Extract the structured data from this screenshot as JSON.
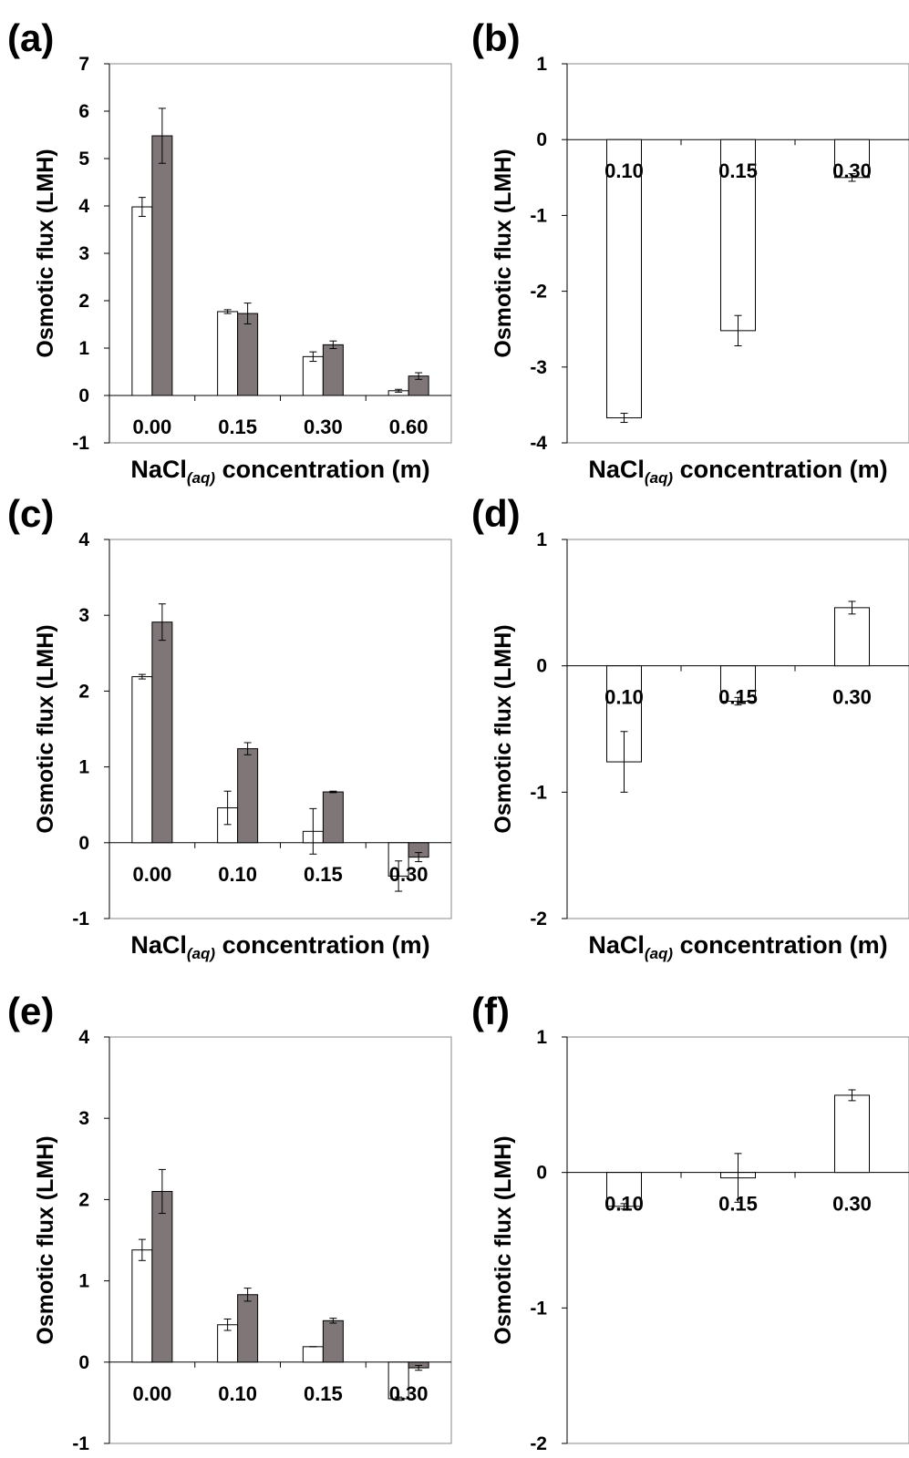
{
  "axis_common": {
    "ylabel": "Osmotic flux (LMH)",
    "xlabel_main": "NaCl",
    "xlabel_sub": "(aq)",
    "xlabel_tail": " concentration (m)"
  },
  "colors": {
    "series_open": "#ffffff",
    "series_filled": "#7f7777",
    "stroke": "#000000",
    "frame": "#8a8a8a"
  },
  "chart_data": [
    {
      "panel": "(a)",
      "type": "bar",
      "categories": [
        "0.00",
        "0.15",
        "0.30",
        "0.60"
      ],
      "ylim": [
        -1,
        7
      ],
      "yticks": [
        -1,
        0,
        1,
        2,
        3,
        4,
        5,
        6,
        7
      ],
      "series": [
        {
          "style": "open",
          "values": [
            3.98,
            1.77,
            0.82,
            0.1
          ],
          "errors": [
            0.2,
            0.04,
            0.1,
            0.03
          ]
        },
        {
          "style": "filled",
          "values": [
            5.48,
            1.73,
            1.07,
            0.41
          ],
          "errors": [
            0.58,
            0.22,
            0.08,
            0.07
          ]
        }
      ]
    },
    {
      "panel": "(b)",
      "type": "bar",
      "categories": [
        "0.10",
        "0.15",
        "0.30"
      ],
      "ylim": [
        -4,
        1
      ],
      "yticks": [
        -4,
        -3,
        -2,
        -1,
        0,
        1
      ],
      "series": [
        {
          "style": "open",
          "values": [
            -3.67,
            -2.52,
            -0.5
          ],
          "errors": [
            0.06,
            0.2,
            0.05
          ]
        }
      ]
    },
    {
      "panel": "(c)",
      "type": "bar",
      "categories": [
        "0.00",
        "0.10",
        "0.15",
        "0.30"
      ],
      "ylim": [
        -1,
        4
      ],
      "yticks": [
        -1,
        0,
        1,
        2,
        3,
        4
      ],
      "series": [
        {
          "style": "open",
          "values": [
            2.19,
            0.46,
            0.15,
            -0.44
          ],
          "errors": [
            0.03,
            0.22,
            0.3,
            0.2
          ]
        },
        {
          "style": "filled",
          "values": [
            2.91,
            1.24,
            0.67,
            -0.19
          ],
          "errors": [
            0.24,
            0.08,
            0.01,
            0.06
          ]
        }
      ]
    },
    {
      "panel": "(d)",
      "type": "bar",
      "categories": [
        "0.10",
        "0.15",
        "0.30"
      ],
      "ylim": [
        -2,
        1
      ],
      "yticks": [
        -2,
        -1,
        0,
        1
      ],
      "series": [
        {
          "style": "open",
          "values": [
            -0.76,
            -0.28,
            0.46
          ],
          "errors": [
            0.24,
            0.03,
            0.05
          ]
        }
      ]
    },
    {
      "panel": "(e)",
      "type": "bar",
      "categories": [
        "0.00",
        "0.10",
        "0.15",
        "0.30"
      ],
      "ylim": [
        -1,
        4
      ],
      "yticks": [
        -1,
        0,
        1,
        2,
        3,
        4
      ],
      "series": [
        {
          "style": "open",
          "values": [
            1.38,
            0.46,
            0.19,
            -0.45
          ],
          "errors": [
            0.13,
            0.07,
            0.0,
            0.02
          ]
        },
        {
          "style": "filled",
          "values": [
            2.1,
            0.83,
            0.51,
            -0.07
          ],
          "errors": [
            0.27,
            0.08,
            0.03,
            0.03
          ]
        }
      ]
    },
    {
      "panel": "(f)",
      "type": "bar",
      "categories": [
        "0.10",
        "0.15",
        "0.30"
      ],
      "ylim": [
        -2,
        1
      ],
      "yticks": [
        -2,
        -1,
        0,
        1
      ],
      "series": [
        {
          "style": "open",
          "values": [
            -0.25,
            -0.04,
            0.57
          ],
          "errors": [
            0.02,
            0.18,
            0.04
          ]
        }
      ]
    }
  ]
}
